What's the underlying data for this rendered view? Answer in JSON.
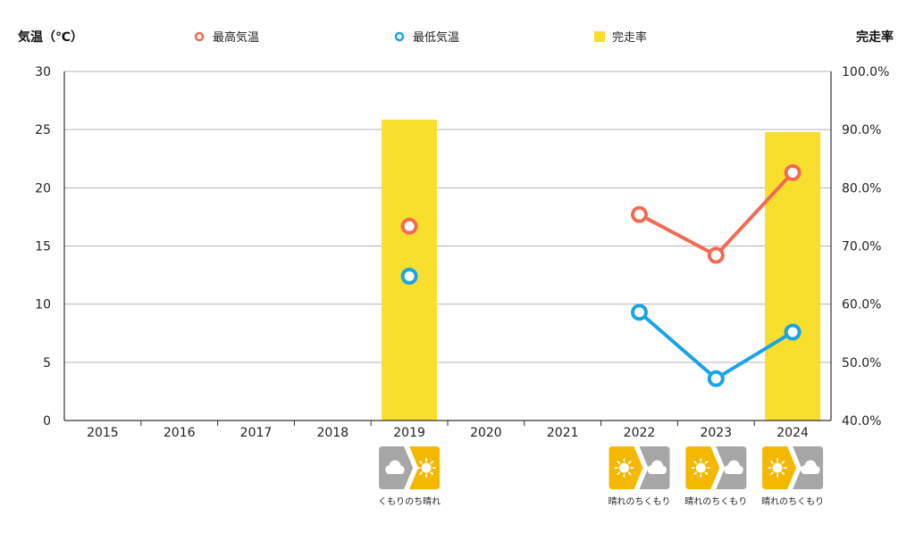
{
  "chart_data": {
    "type": "bar+line",
    "title": "",
    "categories": [
      "2015",
      "2016",
      "2017",
      "2018",
      "2019",
      "2020",
      "2021",
      "2022",
      "2023",
      "2024"
    ],
    "left_axis": {
      "label": "気温（℃）",
      "min": 0,
      "max": 30,
      "ticks": [
        "0",
        "5",
        "10",
        "15",
        "20",
        "25",
        "30"
      ]
    },
    "right_axis": {
      "label": "完走率",
      "min": 40,
      "max": 100,
      "ticks": [
        "40.0%",
        "50.0%",
        "60.0%",
        "70.0%",
        "80.0%",
        "90.0%",
        "100.0%"
      ]
    },
    "grid": true,
    "legend_position": "top",
    "series": [
      {
        "name": "最高気温",
        "type": "line",
        "axis": "left",
        "color": "#f26a54",
        "values": [
          null,
          null,
          null,
          null,
          16.7,
          null,
          null,
          17.7,
          14.2,
          21.3
        ]
      },
      {
        "name": "最低気温",
        "type": "line",
        "axis": "left",
        "color": "#1aa3e8",
        "values": [
          null,
          null,
          null,
          null,
          12.4,
          null,
          null,
          9.3,
          3.6,
          7.6
        ]
      },
      {
        "name": "完走率",
        "type": "bar",
        "axis": "right",
        "color": "#f8df2e",
        "values": [
          null,
          null,
          null,
          null,
          91.7,
          null,
          null,
          null,
          null,
          89.6
        ]
      }
    ],
    "weather": [
      {
        "year": "2019",
        "label": "くもりのち晴れ",
        "from": "cloud-icon",
        "to": "sun-icon"
      },
      {
        "year": "2022",
        "label": "晴れのちくもり",
        "from": "sun-icon",
        "to": "cloud-icon"
      },
      {
        "year": "2023",
        "label": "晴れのちくもり",
        "from": "sun-icon",
        "to": "cloud-icon"
      },
      {
        "year": "2024",
        "label": "晴れのちくもり",
        "from": "sun-icon",
        "to": "cloud-icon"
      }
    ],
    "colors": {
      "sunny": "#f5b800",
      "cloudy": "#a6a6a6"
    }
  }
}
